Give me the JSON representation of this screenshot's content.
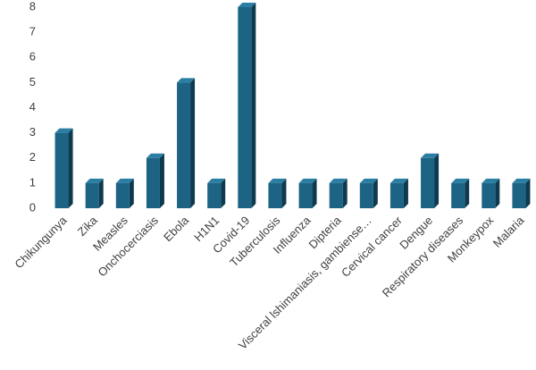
{
  "chart_data": {
    "type": "bar3d",
    "categories": [
      "Chikungunya",
      "Zika",
      "Measles",
      "Onchocerciasis",
      "Ebola",
      "H1N1",
      "Covid-19",
      "Tuberculosis",
      "Influenza",
      "Dipteria",
      "Visceral lshimaniasis, gambiense…",
      "Cervical cancer",
      "Dengue",
      "Respiratory diseases",
      "Monkeypox",
      "Malaria"
    ],
    "values": [
      3,
      1,
      1,
      2,
      5,
      1,
      8,
      1,
      1,
      1,
      1,
      1,
      2,
      1,
      1,
      1
    ],
    "color": "#1c6384",
    "ylim": [
      0,
      8
    ],
    "yticks": [
      0,
      1,
      2,
      3,
      4,
      5,
      6,
      7,
      8
    ],
    "grid": false
  }
}
